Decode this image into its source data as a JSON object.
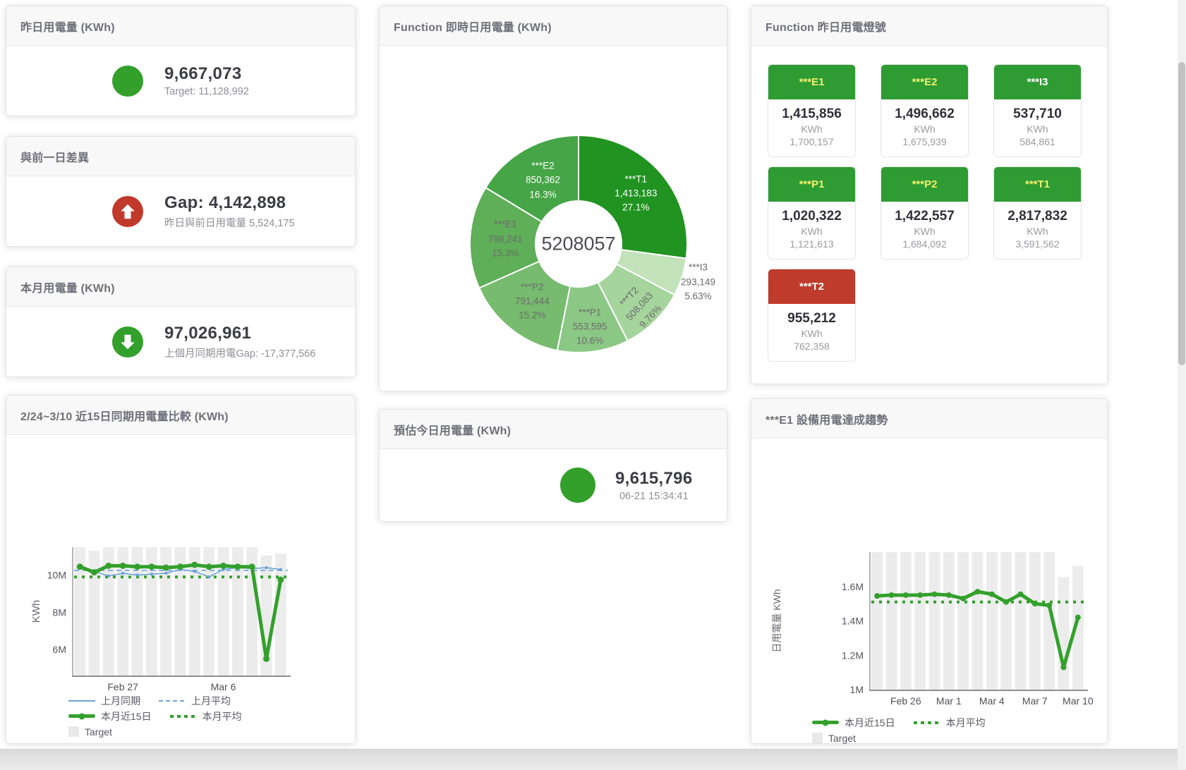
{
  "kpi_cards": [
    {
      "title": "昨日用電量 (KWh)",
      "value": "9,667,073",
      "subtitle": "Target: 11,128,992",
      "icon": "circle",
      "icon_color": "#33a02c"
    },
    {
      "title": "與前一日差異",
      "value": "Gap: 4,142,898",
      "subtitle": "昨日與前日用電量 5,524,175",
      "icon": "arrow-up",
      "icon_color": "#c0392b"
    },
    {
      "title": "本月用電量 (KWh)",
      "value": "97,026,961",
      "subtitle": "上個月同期用電Gap: -17,377,566",
      "icon": "arrow-down",
      "icon_color": "#33a02c"
    },
    {
      "title": "預估今日用電量 (KWh)",
      "value": "9,615,796",
      "subtitle": "06-21 15:34:41",
      "icon": "circle",
      "icon_color": "#33a02c"
    }
  ],
  "lights_card": {
    "title": "Function 昨日用電燈號",
    "unit": "KWh",
    "tiles": [
      {
        "name": "***E1",
        "value": "1,415,856",
        "target": "1,700,157",
        "header_color": "#2e9b33",
        "label_color": "#f3f170"
      },
      {
        "name": "***E2",
        "value": "1,496,662",
        "target": "1,675,939",
        "header_color": "#2e9b33",
        "label_color": "#f3f170"
      },
      {
        "name": "***I3",
        "value": "537,710",
        "target": "584,861",
        "header_color": "#2e9b33",
        "label_color": "#ffffff"
      },
      {
        "name": "***P1",
        "value": "1,020,322",
        "target": "1,121,613",
        "header_color": "#2e9b33",
        "label_color": "#f3f170"
      },
      {
        "name": "***P2",
        "value": "1,422,557",
        "target": "1,684,092",
        "header_color": "#2e9b33",
        "label_color": "#f3f170"
      },
      {
        "name": "***T1",
        "value": "2,817,832",
        "target": "3,591,562",
        "header_color": "#2e9b33",
        "label_color": "#f3f170"
      },
      {
        "name": "***T2",
        "value": "955,212",
        "target": "762,358",
        "header_color": "#bf3b2b",
        "label_color": "#ffffff"
      }
    ]
  },
  "chart_data": [
    {
      "type": "pie",
      "title": "Function 即時日用電量 (KWh)",
      "center_total": "5208057",
      "slices": [
        {
          "name": "***T1",
          "value": 1413183,
          "value_label": "1,413,183",
          "pct": 27.1,
          "pct_label": "27.1%",
          "color": "#219321",
          "label_color": "#ffffff",
          "label_r": 108,
          "rotate": 0,
          "outside": false
        },
        {
          "name": "***I3",
          "value": 293149,
          "value_label": "293,149",
          "pct": 5.63,
          "pct_label": "5.63%",
          "color": "#c2e2ba",
          "label_color": "#6b6b6b",
          "label_r": 178,
          "rotate": 0,
          "outside": true
        },
        {
          "name": "***T2",
          "value": 508083,
          "value_label": "508,083",
          "pct": 9.76,
          "pct_label": "9.76%",
          "color": "#a5d49d",
          "label_color": "#6b6b6b",
          "label_r": 124,
          "rotate": -47,
          "outside": false
        },
        {
          "name": "***P1",
          "value": 553595,
          "value_label": "553,595",
          "pct": 10.6,
          "pct_label": "10.6%",
          "color": "#8cc885",
          "label_color": "#6b6b6b",
          "label_r": 119,
          "rotate": 0,
          "outside": false
        },
        {
          "name": "***P2",
          "value": 791444,
          "value_label": "791,444",
          "pct": 15.2,
          "pct_label": "15.2%",
          "color": "#76bb6e",
          "label_color": "#6b6b6b",
          "label_r": 105,
          "rotate": 0,
          "outside": false
        },
        {
          "name": "***E1",
          "value": 798241,
          "value_label": "798,241",
          "pct": 15.3,
          "pct_label": "15.3%",
          "color": "#5fae58",
          "label_color": "#6b6b6b",
          "label_r": 104,
          "rotate": 0,
          "outside": false
        },
        {
          "name": "***E2",
          "value": 850362,
          "value_label": "850,362",
          "pct": 16.3,
          "pct_label": "16.3%",
          "color": "#46a546",
          "label_color": "#ffffff",
          "label_r": 103,
          "rotate": 0,
          "outside": false
        }
      ]
    },
    {
      "type": "line",
      "title": "2/24~3/10 近15日同期用電量比較 (KWh)",
      "ylabel": "KWh",
      "ylim": [
        4600000,
        11500000
      ],
      "yticks": [
        {
          "value": 6000000,
          "label": "6M"
        },
        {
          "value": 8000000,
          "label": "8M"
        },
        {
          "value": 10000000,
          "label": "10M"
        }
      ],
      "x_count": 15,
      "xticks": [
        {
          "index": 3,
          "label": "Feb 27"
        },
        {
          "index": 10,
          "label": "Mar 6"
        }
      ],
      "target_bars": {
        "name": "Target",
        "color": "#ececec",
        "values": [
          11500000,
          11300000,
          11500000,
          11500000,
          11500000,
          11500000,
          11500000,
          11500000,
          11500000,
          11500000,
          11500000,
          11500000,
          11500000,
          11050000,
          11150000
        ]
      },
      "series": [
        {
          "name": "上月同期",
          "color": "#6aa3d8",
          "style": "solid",
          "width": 1.6,
          "marker": 2.2,
          "values": [
            10500000,
            10200000,
            9950000,
            10100000,
            10000000,
            10050000,
            10100000,
            10300000,
            10200000,
            9900000,
            10300000,
            10400000,
            10350000,
            10400000,
            10300000
          ]
        },
        {
          "name": "上月平均",
          "color": "#6aa3d8",
          "style": "dashed",
          "width": 1.6,
          "avg": 10250000
        },
        {
          "name": "本月近15日",
          "color": "#33a02c",
          "style": "solid",
          "width": 5,
          "marker": 4.5,
          "values": [
            10450000,
            10150000,
            10500000,
            10500000,
            10450000,
            10450000,
            10400000,
            10450000,
            10550000,
            10450000,
            10500000,
            10450000,
            10450000,
            5500000,
            9750000
          ]
        },
        {
          "name": "本月平均",
          "color": "#33a02c",
          "style": "dotted",
          "width": 4,
          "avg": 9900000
        }
      ],
      "legend": [
        {
          "label": "上月同期",
          "swatch": "line",
          "color": "#6aa3d8"
        },
        {
          "label": "上月平均",
          "swatch": "dashed",
          "color": "#6aa3d8"
        },
        {
          "label": "本月近15日",
          "swatch": "thick",
          "color": "#33a02c"
        },
        {
          "label": "本月平均",
          "swatch": "dotted",
          "color": "#33a02c"
        },
        {
          "label": "Target",
          "swatch": "box",
          "color": "#e9e9e9"
        }
      ]
    },
    {
      "type": "line",
      "title": "***E1 設備用電達成趨勢",
      "ylabel": "日用電量 KWh",
      "ylim": [
        1000000,
        1800000
      ],
      "yticks": [
        {
          "value": 1000000,
          "label": "1M"
        },
        {
          "value": 1200000,
          "label": "1.2M"
        },
        {
          "value": 1400000,
          "label": "1.4M"
        },
        {
          "value": 1600000,
          "label": "1.6M"
        }
      ],
      "x_count": 15,
      "xticks": [
        {
          "index": 2,
          "label": "Feb 26"
        },
        {
          "index": 5,
          "label": "Mar 1"
        },
        {
          "index": 8,
          "label": "Mar 4"
        },
        {
          "index": 11,
          "label": "Mar 7"
        },
        {
          "index": 14,
          "label": "Mar 10"
        }
      ],
      "target_bars": {
        "name": "Target",
        "color": "#ececec",
        "values": [
          1800000,
          1800000,
          1800000,
          1800000,
          1800000,
          1800000,
          1800000,
          1800000,
          1800000,
          1800000,
          1800000,
          1800000,
          1800000,
          1655000,
          1720000
        ]
      },
      "series": [
        {
          "name": "本月近15日",
          "color": "#33a02c",
          "style": "solid",
          "width": 5,
          "marker": 4,
          "values": [
            1545000,
            1550000,
            1550000,
            1550000,
            1555000,
            1550000,
            1530000,
            1570000,
            1555000,
            1510000,
            1555000,
            1500000,
            1490000,
            1130000,
            1420000
          ]
        },
        {
          "name": "本月平均",
          "color": "#33a02c",
          "style": "dotted",
          "width": 4,
          "avg": 1510000
        }
      ],
      "legend": [
        {
          "label": "本月近15日",
          "swatch": "thick",
          "color": "#33a02c"
        },
        {
          "label": "本月平均",
          "swatch": "dotted",
          "color": "#33a02c"
        },
        {
          "label": "Target",
          "swatch": "box",
          "color": "#e9e9e9"
        }
      ]
    }
  ]
}
